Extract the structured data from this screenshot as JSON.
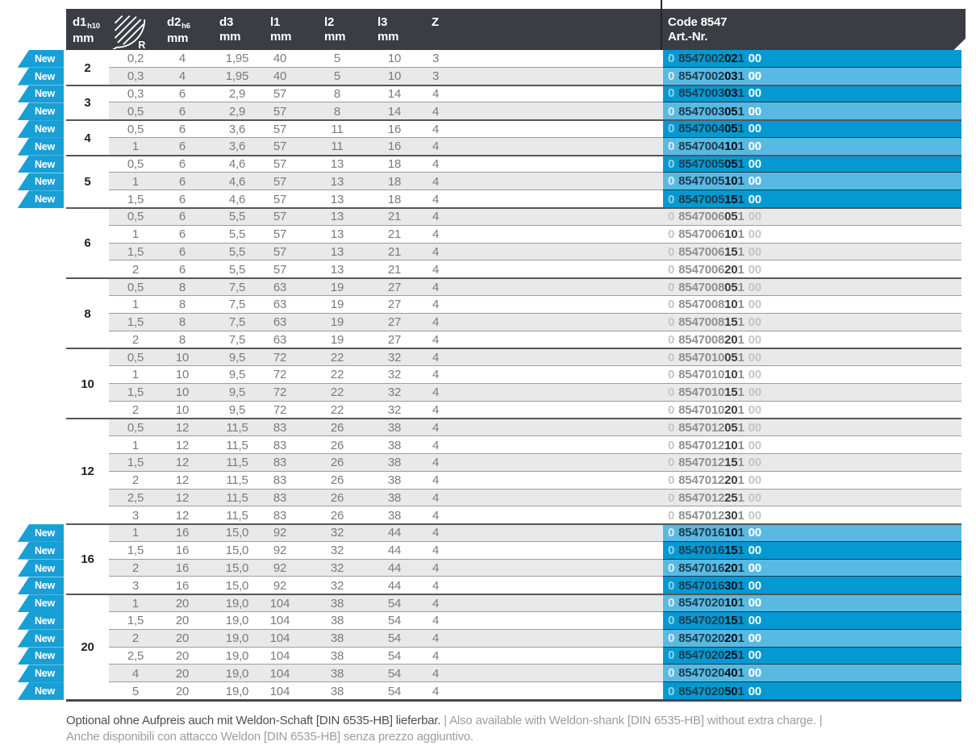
{
  "badge_label": "New",
  "header": {
    "columns": [
      {
        "label": "d1",
        "sub": "h10",
        "unit": "mm"
      },
      {
        "icon": "radius-icon",
        "icon_label": "R"
      },
      {
        "label": "d2",
        "sub": "h6",
        "unit": "mm"
      },
      {
        "label": "d3",
        "unit": "mm"
      },
      {
        "label": "l1",
        "unit": "mm"
      },
      {
        "label": "l2",
        "unit": "mm"
      },
      {
        "label": "l3",
        "unit": "mm"
      },
      {
        "label": "Z"
      }
    ],
    "code_title": "Code 8547",
    "code_sub": "Art.-Nr."
  },
  "groups": [
    {
      "d1": "2",
      "rows": [
        {
          "new": true,
          "r": "0,2",
          "d2": "4",
          "d3": "1,95",
          "l1": "40",
          "l2": "5",
          "l3": "10",
          "z": "3",
          "art": [
            "0",
            "8547002",
            "02",
            "1",
            "00"
          ]
        },
        {
          "new": true,
          "r": "0,3",
          "d2": "4",
          "d3": "1,95",
          "l1": "40",
          "l2": "5",
          "l3": "10",
          "z": "3",
          "art": [
            "0",
            "8547002",
            "03",
            "1",
            "00"
          ]
        }
      ]
    },
    {
      "d1": "3",
      "rows": [
        {
          "new": true,
          "r": "0,3",
          "d2": "6",
          "d3": "2,9",
          "l1": "57",
          "l2": "8",
          "l3": "14",
          "z": "4",
          "art": [
            "0",
            "8547003",
            "03",
            "1",
            "00"
          ]
        },
        {
          "new": true,
          "r": "0,5",
          "d2": "6",
          "d3": "2,9",
          "l1": "57",
          "l2": "8",
          "l3": "14",
          "z": "4",
          "art": [
            "0",
            "8547003",
            "05",
            "1",
            "00"
          ]
        }
      ]
    },
    {
      "d1": "4",
      "rows": [
        {
          "new": true,
          "r": "0,5",
          "d2": "6",
          "d3": "3,6",
          "l1": "57",
          "l2": "11",
          "l3": "16",
          "z": "4",
          "art": [
            "0",
            "8547004",
            "05",
            "1",
            "00"
          ]
        },
        {
          "new": true,
          "r": "1",
          "d2": "6",
          "d3": "3,6",
          "l1": "57",
          "l2": "11",
          "l3": "16",
          "z": "4",
          "art": [
            "0",
            "8547004",
            "10",
            "1",
            "00"
          ]
        }
      ]
    },
    {
      "d1": "5",
      "rows": [
        {
          "new": true,
          "r": "0,5",
          "d2": "6",
          "d3": "4,6",
          "l1": "57",
          "l2": "13",
          "l3": "18",
          "z": "4",
          "art": [
            "0",
            "8547005",
            "05",
            "1",
            "00"
          ]
        },
        {
          "new": true,
          "r": "1",
          "d2": "6",
          "d3": "4,6",
          "l1": "57",
          "l2": "13",
          "l3": "18",
          "z": "4",
          "art": [
            "0",
            "8547005",
            "10",
            "1",
            "00"
          ]
        },
        {
          "new": true,
          "r": "1,5",
          "d2": "6",
          "d3": "4,6",
          "l1": "57",
          "l2": "13",
          "l3": "18",
          "z": "4",
          "art": [
            "0",
            "8547005",
            "15",
            "1",
            "00"
          ]
        }
      ]
    },
    {
      "d1": "6",
      "rows": [
        {
          "new": false,
          "r": "0,5",
          "d2": "6",
          "d3": "5,5",
          "l1": "57",
          "l2": "13",
          "l3": "21",
          "z": "4",
          "art": [
            "0",
            "8547006",
            "05",
            "1",
            "00"
          ]
        },
        {
          "new": false,
          "r": "1",
          "d2": "6",
          "d3": "5,5",
          "l1": "57",
          "l2": "13",
          "l3": "21",
          "z": "4",
          "art": [
            "0",
            "8547006",
            "10",
            "1",
            "00"
          ]
        },
        {
          "new": false,
          "r": "1,5",
          "d2": "6",
          "d3": "5,5",
          "l1": "57",
          "l2": "13",
          "l3": "21",
          "z": "4",
          "art": [
            "0",
            "8547006",
            "15",
            "1",
            "00"
          ]
        },
        {
          "new": false,
          "r": "2",
          "d2": "6",
          "d3": "5,5",
          "l1": "57",
          "l2": "13",
          "l3": "21",
          "z": "4",
          "art": [
            "0",
            "8547006",
            "20",
            "1",
            "00"
          ]
        }
      ]
    },
    {
      "d1": "8",
      "rows": [
        {
          "new": false,
          "r": "0,5",
          "d2": "8",
          "d3": "7,5",
          "l1": "63",
          "l2": "19",
          "l3": "27",
          "z": "4",
          "art": [
            "0",
            "8547008",
            "05",
            "1",
            "00"
          ]
        },
        {
          "new": false,
          "r": "1",
          "d2": "8",
          "d3": "7,5",
          "l1": "63",
          "l2": "19",
          "l3": "27",
          "z": "4",
          "art": [
            "0",
            "8547008",
            "10",
            "1",
            "00"
          ]
        },
        {
          "new": false,
          "r": "1,5",
          "d2": "8",
          "d3": "7,5",
          "l1": "63",
          "l2": "19",
          "l3": "27",
          "z": "4",
          "art": [
            "0",
            "8547008",
            "15",
            "1",
            "00"
          ]
        },
        {
          "new": false,
          "r": "2",
          "d2": "8",
          "d3": "7,5",
          "l1": "63",
          "l2": "19",
          "l3": "27",
          "z": "4",
          "art": [
            "0",
            "8547008",
            "20",
            "1",
            "00"
          ]
        }
      ]
    },
    {
      "d1": "10",
      "rows": [
        {
          "new": false,
          "r": "0,5",
          "d2": "10",
          "d3": "9,5",
          "l1": "72",
          "l2": "22",
          "l3": "32",
          "z": "4",
          "art": [
            "0",
            "8547010",
            "05",
            "1",
            "00"
          ]
        },
        {
          "new": false,
          "r": "1",
          "d2": "10",
          "d3": "9,5",
          "l1": "72",
          "l2": "22",
          "l3": "32",
          "z": "4",
          "art": [
            "0",
            "8547010",
            "10",
            "1",
            "00"
          ]
        },
        {
          "new": false,
          "r": "1,5",
          "d2": "10",
          "d3": "9,5",
          "l1": "72",
          "l2": "22",
          "l3": "32",
          "z": "4",
          "art": [
            "0",
            "8547010",
            "15",
            "1",
            "00"
          ]
        },
        {
          "new": false,
          "r": "2",
          "d2": "10",
          "d3": "9,5",
          "l1": "72",
          "l2": "22",
          "l3": "32",
          "z": "4",
          "art": [
            "0",
            "8547010",
            "20",
            "1",
            "00"
          ]
        }
      ]
    },
    {
      "d1": "12",
      "rows": [
        {
          "new": false,
          "r": "0,5",
          "d2": "12",
          "d3": "11,5",
          "l1": "83",
          "l2": "26",
          "l3": "38",
          "z": "4",
          "art": [
            "0",
            "8547012",
            "05",
            "1",
            "00"
          ]
        },
        {
          "new": false,
          "r": "1",
          "d2": "12",
          "d3": "11,5",
          "l1": "83",
          "l2": "26",
          "l3": "38",
          "z": "4",
          "art": [
            "0",
            "8547012",
            "10",
            "1",
            "00"
          ]
        },
        {
          "new": false,
          "r": "1,5",
          "d2": "12",
          "d3": "11,5",
          "l1": "83",
          "l2": "26",
          "l3": "38",
          "z": "4",
          "art": [
            "0",
            "8547012",
            "15",
            "1",
            "00"
          ]
        },
        {
          "new": false,
          "r": "2",
          "d2": "12",
          "d3": "11,5",
          "l1": "83",
          "l2": "26",
          "l3": "38",
          "z": "4",
          "art": [
            "0",
            "8547012",
            "20",
            "1",
            "00"
          ]
        },
        {
          "new": false,
          "r": "2,5",
          "d2": "12",
          "d3": "11,5",
          "l1": "83",
          "l2": "26",
          "l3": "38",
          "z": "4",
          "art": [
            "0",
            "8547012",
            "25",
            "1",
            "00"
          ]
        },
        {
          "new": false,
          "r": "3",
          "d2": "12",
          "d3": "11,5",
          "l1": "83",
          "l2": "26",
          "l3": "38",
          "z": "4",
          "art": [
            "0",
            "8547012",
            "30",
            "1",
            "00"
          ]
        }
      ]
    },
    {
      "d1": "16",
      "rows": [
        {
          "new": true,
          "r": "1",
          "d2": "16",
          "d3": "15,0",
          "l1": "92",
          "l2": "32",
          "l3": "44",
          "z": "4",
          "art": [
            "0",
            "8547016",
            "10",
            "1",
            "00"
          ]
        },
        {
          "new": true,
          "r": "1,5",
          "d2": "16",
          "d3": "15,0",
          "l1": "92",
          "l2": "32",
          "l3": "44",
          "z": "4",
          "art": [
            "0",
            "8547016",
            "15",
            "1",
            "00"
          ]
        },
        {
          "new": true,
          "r": "2",
          "d2": "16",
          "d3": "15,0",
          "l1": "92",
          "l2": "32",
          "l3": "44",
          "z": "4",
          "art": [
            "0",
            "8547016",
            "20",
            "1",
            "00"
          ]
        },
        {
          "new": true,
          "r": "3",
          "d2": "16",
          "d3": "15,0",
          "l1": "92",
          "l2": "32",
          "l3": "44",
          "z": "4",
          "art": [
            "0",
            "8547016",
            "30",
            "1",
            "00"
          ]
        }
      ]
    },
    {
      "d1": "20",
      "rows": [
        {
          "new": true,
          "r": "1",
          "d2": "20",
          "d3": "19,0",
          "l1": "104",
          "l2": "38",
          "l3": "54",
          "z": "4",
          "art": [
            "0",
            "8547020",
            "10",
            "1",
            "00"
          ]
        },
        {
          "new": true,
          "r": "1,5",
          "d2": "20",
          "d3": "19,0",
          "l1": "104",
          "l2": "38",
          "l3": "54",
          "z": "4",
          "art": [
            "0",
            "8547020",
            "15",
            "1",
            "00"
          ]
        },
        {
          "new": true,
          "r": "2",
          "d2": "20",
          "d3": "19,0",
          "l1": "104",
          "l2": "38",
          "l3": "54",
          "z": "4",
          "art": [
            "0",
            "8547020",
            "20",
            "1",
            "00"
          ]
        },
        {
          "new": true,
          "r": "2,5",
          "d2": "20",
          "d3": "19,0",
          "l1": "104",
          "l2": "38",
          "l3": "54",
          "z": "4",
          "art": [
            "0",
            "8547020",
            "25",
            "1",
            "00"
          ]
        },
        {
          "new": true,
          "r": "4",
          "d2": "20",
          "d3": "19,0",
          "l1": "104",
          "l2": "38",
          "l3": "54",
          "z": "4",
          "art": [
            "0",
            "8547020",
            "40",
            "1",
            "00"
          ]
        },
        {
          "new": true,
          "r": "5",
          "d2": "20",
          "d3": "19,0",
          "l1": "104",
          "l2": "38",
          "l3": "54",
          "z": "4",
          "art": [
            "0",
            "8547020",
            "50",
            "1",
            "00"
          ]
        }
      ]
    }
  ],
  "footnote": {
    "line1_dark": "Optional ohne Aufpreis auch mit Weldon-Schaft [DIN 6535-HB] lieferbar.",
    "line1_light": " | Also available with Weldon-shank [DIN 6535-HB] without extra charge. |",
    "line2_light": "Anche disponibili con attacco Weldon [DIN 6535-HB] senza prezzo aggiuntivo."
  },
  "colors": {
    "accent_cyan": "#189fd5",
    "art_row_dark": "#0599d1",
    "art_row_light": "#58bae2",
    "header_charcoal": "#3a3d43",
    "row_gray": "#e9e9e9"
  }
}
